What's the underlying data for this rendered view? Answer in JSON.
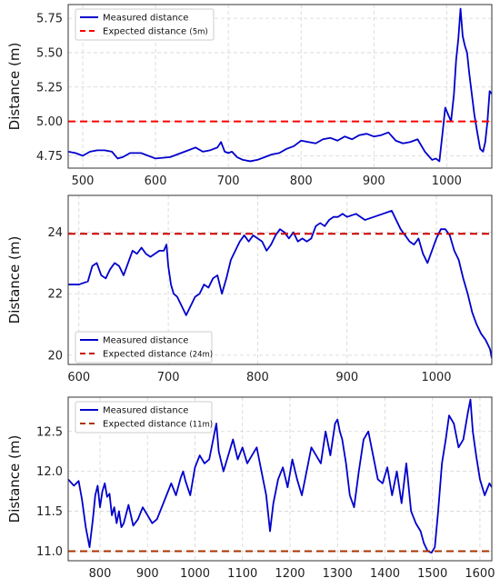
{
  "chart_data": [
    {
      "type": "line",
      "xlim": [
        480,
        1062
      ],
      "ylim": [
        4.66,
        5.85
      ],
      "xticks": [
        500,
        600,
        700,
        800,
        900,
        1000
      ],
      "yticks": [
        4.75,
        5.0,
        5.25,
        5.5,
        5.75
      ],
      "ytick_labels": [
        "4.75",
        "5.00",
        "5.25",
        "5.50",
        "5.75"
      ],
      "xlabel": "",
      "ylabel": "Distance (m)",
      "grid": true,
      "legend_position": "top-left",
      "legend": {
        "measured": "Measured distance",
        "expected": "Expected distance",
        "expected_note": "(5m)"
      },
      "series": [
        {
          "name": "Measured distance",
          "color": "#0000cc",
          "x": [
            480,
            490,
            500,
            510,
            520,
            530,
            540,
            548,
            555,
            565,
            580,
            600,
            620,
            640,
            655,
            665,
            675,
            685,
            690,
            695,
            700,
            705,
            712,
            720,
            730,
            740,
            750,
            760,
            770,
            780,
            790,
            800,
            810,
            820,
            830,
            840,
            850,
            860,
            870,
            880,
            890,
            900,
            910,
            920,
            930,
            940,
            950,
            960,
            970,
            980,
            985,
            990,
            994,
            998,
            1002,
            1006,
            1010,
            1013,
            1016,
            1019,
            1022,
            1025,
            1028,
            1031,
            1034,
            1038,
            1042,
            1046,
            1050,
            1053,
            1056,
            1059,
            1062
          ],
          "y": [
            4.78,
            4.77,
            4.75,
            4.78,
            4.79,
            4.79,
            4.78,
            4.73,
            4.74,
            4.77,
            4.77,
            4.73,
            4.74,
            4.78,
            4.81,
            4.78,
            4.79,
            4.81,
            4.85,
            4.78,
            4.77,
            4.78,
            4.74,
            4.72,
            4.71,
            4.72,
            4.74,
            4.76,
            4.77,
            4.8,
            4.82,
            4.86,
            4.85,
            4.84,
            4.87,
            4.88,
            4.86,
            4.89,
            4.87,
            4.9,
            4.91,
            4.89,
            4.9,
            4.92,
            4.86,
            4.84,
            4.85,
            4.87,
            4.78,
            4.72,
            4.73,
            4.71,
            4.9,
            5.1,
            5.05,
            5.0,
            5.2,
            5.45,
            5.6,
            5.82,
            5.62,
            5.55,
            5.5,
            5.35,
            5.22,
            5.05,
            4.92,
            4.8,
            4.78,
            4.85,
            5.0,
            5.22,
            5.2
          ]
        },
        {
          "name": "Expected distance(5m)",
          "color": "#ff0000",
          "style": "dashed",
          "x": [
            480,
            1062
          ],
          "y": [
            5.0,
            5.0
          ]
        }
      ]
    },
    {
      "type": "line",
      "xlim": [
        588,
        1062
      ],
      "ylim": [
        19.7,
        25.2
      ],
      "xticks": [
        600,
        700,
        800,
        900,
        1000
      ],
      "yticks": [
        20,
        22,
        24
      ],
      "ytick_labels": [
        "20",
        "22",
        "24"
      ],
      "xlabel": "",
      "ylabel": "Distance (m)",
      "grid": true,
      "legend_position": "bottom-left",
      "legend": {
        "measured": "Measured distance",
        "expected": "Expected distance",
        "expected_note": "(24m)"
      },
      "series": [
        {
          "name": "Measured distance",
          "color": "#0000cc",
          "x": [
            588,
            600,
            610,
            615,
            620,
            625,
            630,
            635,
            640,
            645,
            650,
            655,
            660,
            665,
            670,
            675,
            680,
            690,
            695,
            698,
            700,
            703,
            706,
            710,
            715,
            720,
            725,
            730,
            735,
            740,
            745,
            750,
            755,
            760,
            765,
            770,
            775,
            780,
            785,
            790,
            795,
            800,
            805,
            810,
            815,
            820,
            825,
            830,
            835,
            840,
            845,
            850,
            855,
            860,
            865,
            870,
            875,
            880,
            885,
            890,
            895,
            900,
            910,
            920,
            930,
            940,
            950,
            955,
            960,
            965,
            970,
            975,
            980,
            985,
            990,
            995,
            1000,
            1005,
            1010,
            1015,
            1020,
            1025,
            1030,
            1035,
            1040,
            1045,
            1050,
            1055,
            1060,
            1062
          ],
          "y": [
            22.3,
            22.3,
            22.4,
            22.9,
            23.0,
            22.6,
            22.5,
            22.8,
            23.0,
            22.9,
            22.6,
            23.0,
            23.4,
            23.3,
            23.5,
            23.3,
            23.2,
            23.4,
            23.4,
            23.6,
            22.9,
            22.3,
            22.0,
            21.9,
            21.6,
            21.3,
            21.6,
            21.9,
            22.0,
            22.3,
            22.2,
            22.5,
            22.6,
            22.0,
            22.5,
            23.1,
            23.4,
            23.7,
            23.9,
            23.7,
            23.9,
            23.8,
            23.7,
            23.4,
            23.6,
            23.9,
            24.1,
            24.0,
            23.8,
            24.0,
            23.7,
            23.8,
            23.7,
            23.8,
            24.2,
            24.3,
            24.2,
            24.4,
            24.5,
            24.5,
            24.6,
            24.5,
            24.6,
            24.4,
            24.5,
            24.6,
            24.7,
            24.4,
            24.1,
            23.9,
            23.7,
            23.6,
            23.8,
            23.3,
            23.0,
            23.4,
            23.8,
            24.1,
            24.1,
            23.9,
            23.4,
            23.1,
            22.5,
            22.0,
            21.4,
            21.0,
            20.7,
            20.5,
            20.2,
            19.9
          ]
        },
        {
          "name": "Expected distance (24m)",
          "color": "#cc0000",
          "style": "dashed",
          "x": [
            588,
            1062
          ],
          "y": [
            23.95,
            23.95
          ]
        }
      ]
    },
    {
      "type": "line",
      "xlim": [
        733,
        1625
      ],
      "ylim": [
        10.88,
        12.93
      ],
      "xticks": [
        800,
        900,
        1000,
        1100,
        1200,
        1300,
        1400,
        1500,
        1600
      ],
      "yticks": [
        11.0,
        11.5,
        12.0,
        12.5
      ],
      "ytick_labels": [
        "11.0",
        "11.5",
        "12.0",
        "12.5"
      ],
      "xlabel": "",
      "ylabel": "Distance (m)",
      "grid": true,
      "legend_position": "top-left",
      "legend": {
        "measured": "Measured distance",
        "expected": "Expected distance",
        "expected_note": "(11m)"
      },
      "series": [
        {
          "name": "Measured distance",
          "color": "#0000cc",
          "x": [
            733,
            745,
            755,
            762,
            770,
            778,
            785,
            790,
            795,
            800,
            805,
            810,
            815,
            820,
            825,
            830,
            835,
            840,
            845,
            850,
            860,
            870,
            880,
            890,
            900,
            910,
            920,
            930,
            940,
            950,
            960,
            970,
            975,
            980,
            990,
            1000,
            1010,
            1020,
            1030,
            1040,
            1045,
            1050,
            1060,
            1070,
            1080,
            1090,
            1100,
            1110,
            1120,
            1130,
            1140,
            1150,
            1158,
            1165,
            1175,
            1185,
            1195,
            1205,
            1215,
            1225,
            1235,
            1245,
            1255,
            1265,
            1275,
            1285,
            1295,
            1300,
            1305,
            1310,
            1318,
            1326,
            1335,
            1345,
            1355,
            1365,
            1375,
            1385,
            1395,
            1405,
            1415,
            1425,
            1435,
            1445,
            1455,
            1465,
            1475,
            1482,
            1490,
            1498,
            1505,
            1512,
            1520,
            1528,
            1535,
            1545,
            1555,
            1565,
            1575,
            1580,
            1585,
            1592,
            1600,
            1610,
            1620,
            1625
          ],
          "y": [
            11.9,
            11.82,
            11.88,
            11.65,
            11.3,
            11.05,
            11.4,
            11.7,
            11.82,
            11.55,
            11.75,
            11.85,
            11.68,
            11.72,
            11.45,
            11.55,
            11.35,
            11.5,
            11.3,
            11.35,
            11.58,
            11.32,
            11.4,
            11.55,
            11.45,
            11.35,
            11.4,
            11.55,
            11.7,
            11.85,
            11.7,
            11.92,
            12.0,
            11.88,
            11.7,
            12.05,
            12.2,
            12.1,
            12.15,
            12.45,
            12.6,
            12.25,
            12.0,
            12.2,
            12.4,
            12.15,
            12.3,
            12.1,
            12.2,
            12.3,
            12.0,
            11.7,
            11.25,
            11.6,
            11.9,
            12.05,
            11.8,
            12.15,
            11.9,
            11.7,
            12.0,
            12.3,
            12.2,
            12.1,
            12.5,
            12.2,
            12.6,
            12.65,
            12.5,
            12.4,
            12.1,
            11.7,
            11.55,
            12.0,
            12.4,
            12.5,
            12.2,
            11.9,
            11.85,
            12.05,
            11.7,
            12.0,
            11.6,
            12.1,
            11.5,
            11.35,
            11.25,
            11.1,
            11.0,
            10.98,
            11.05,
            11.5,
            12.1,
            12.4,
            12.7,
            12.6,
            12.3,
            12.4,
            12.75,
            12.9,
            12.5,
            12.2,
            11.9,
            11.7,
            11.85,
            11.8
          ]
        },
        {
          "name": "Expected distance (11m)",
          "color": "#aa3300",
          "style": "dashed",
          "x": [
            733,
            1625
          ],
          "y": [
            11.0,
            11.0
          ]
        }
      ]
    }
  ]
}
